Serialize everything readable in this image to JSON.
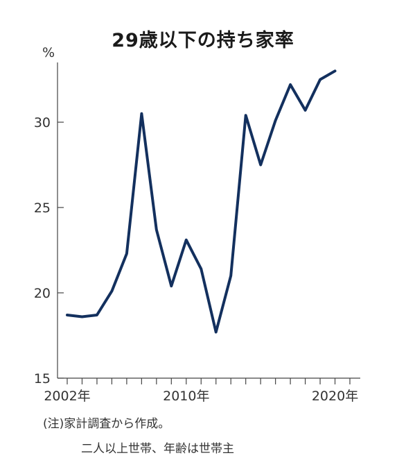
{
  "chart_data": {
    "type": "line",
    "title": "29歳以下の持ち家率",
    "ylabel": "%",
    "xlabel": "",
    "ylim": [
      15,
      33.5
    ],
    "yticks": [
      15,
      20,
      25,
      30
    ],
    "xlim": [
      2001.5,
      2021.5
    ],
    "xtick_labels": [
      {
        "x": 2002,
        "label": "2002年"
      },
      {
        "x": 2010,
        "label": "2010年"
      },
      {
        "x": 2020,
        "label": "2020年"
      }
    ],
    "grid": false,
    "line_color": "#13305e",
    "series": [
      {
        "x": [
          2002,
          2003,
          2004,
          2005,
          2006,
          2007,
          2008,
          2009,
          2010,
          2011,
          2012,
          2013,
          2014,
          2015,
          2016,
          2017,
          2018,
          2019,
          2020,
          2021
        ],
        "values": [
          18.7,
          18.6,
          18.7,
          20.1,
          22.3,
          30.5,
          23.7,
          20.4,
          23.1,
          21.4,
          17.7,
          21.0,
          30.4,
          27.5,
          30.1,
          32.2,
          30.7,
          32.5,
          33.0,
          null
        ]
      }
    ]
  },
  "notes": {
    "line1": "(注)家計調査から作成。",
    "line2": "二人以上世帯、年齢は世帯主"
  }
}
